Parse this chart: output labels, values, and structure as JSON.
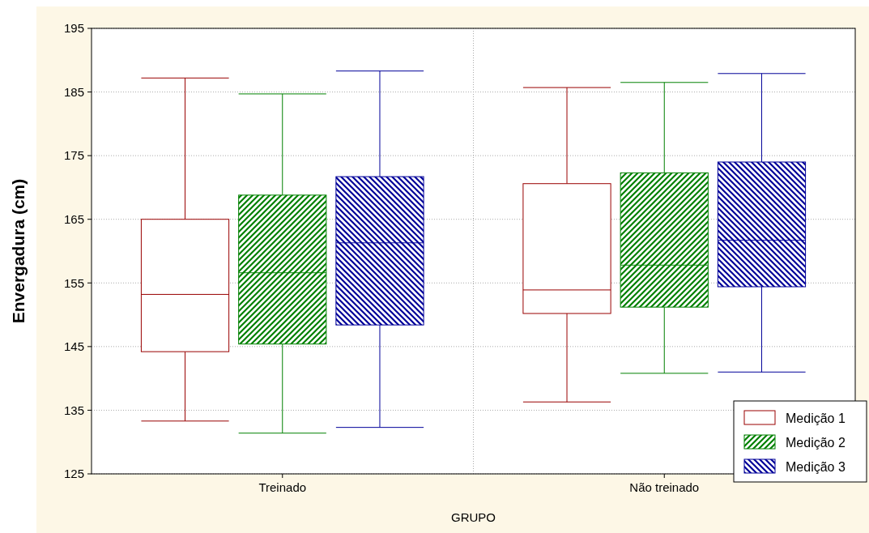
{
  "chart_data": {
    "type": "box",
    "xlabel": "GRUPO",
    "ylabel": "Envergadura (cm)",
    "categories": [
      "Treinado",
      "Não treinado"
    ],
    "ylim": [
      125,
      195
    ],
    "yticks": [
      125,
      135,
      145,
      155,
      165,
      175,
      185,
      195
    ],
    "grid": true,
    "legend": "bottom right",
    "series": [
      {
        "name": "Medição 1",
        "color": "#990000",
        "boxes": [
          {
            "low": 133.3,
            "q1": 144.2,
            "median": 153.2,
            "q3": 165.0,
            "high": 187.2
          },
          {
            "low": 136.3,
            "q1": 150.2,
            "median": 153.9,
            "q3": 170.6,
            "high": 185.7
          }
        ]
      },
      {
        "name": "Medição 2",
        "color": "#008000",
        "boxes": [
          {
            "low": 131.4,
            "q1": 145.4,
            "median": 156.6,
            "q3": 168.8,
            "high": 184.7
          },
          {
            "low": 140.8,
            "q1": 151.2,
            "median": 157.8,
            "q3": 172.3,
            "high": 186.5
          }
        ]
      },
      {
        "name": "Medição 3",
        "color": "#000099",
        "boxes": [
          {
            "low": 132.3,
            "q1": 148.4,
            "median": 161.3,
            "q3": 171.7,
            "high": 188.3
          },
          {
            "low": 141.0,
            "q1": 154.4,
            "median": 161.7,
            "q3": 174.0,
            "high": 187.9
          }
        ]
      }
    ]
  }
}
